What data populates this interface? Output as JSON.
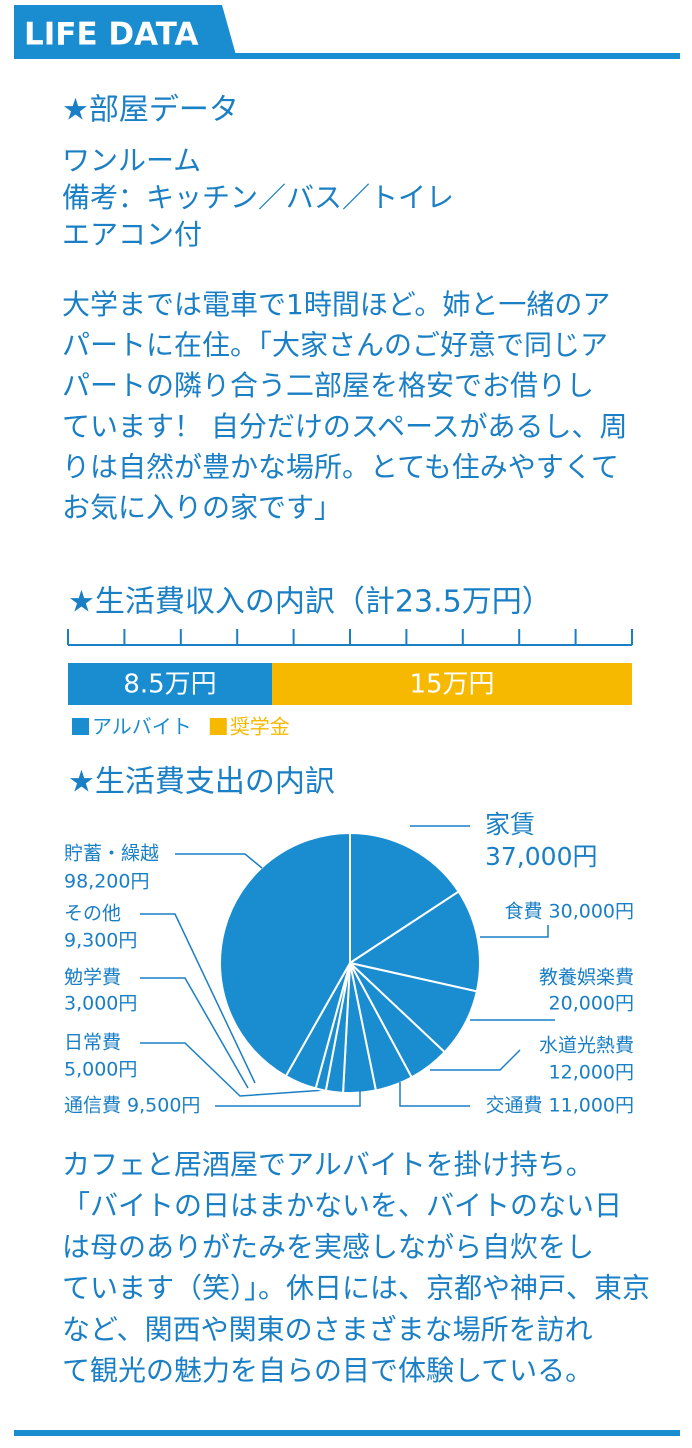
{
  "header": {
    "title": "LIFE DATA"
  },
  "room": {
    "title": "★部屋データ",
    "lines": [
      "ワンルーム",
      "備考：キッチン／バス／トイレ",
      "エアコン付"
    ]
  },
  "paragraph1": {
    "lines": [
      "大学までは電車で1時間ほど。姉と一緒のア",
      "パートに在住。「大家さんのご好意で同じア",
      "パートの隣り合う二部屋を格安でお借りし",
      "ています！ 自分だけのスペースがあるし、周",
      "りは自然が豊かな場所。とても住みやすくて",
      "お気に入りの家です」"
    ]
  },
  "chart_data": [
    {
      "type": "bar",
      "title": "★生活費収入の内訳（計23.5万円）",
      "stacked": true,
      "xlim": [
        0,
        23.5
      ],
      "xticks": [
        0,
        2.35,
        4.7,
        7.05,
        9.4,
        11.75,
        14.1,
        16.45,
        18.8,
        21.15,
        23.5
      ],
      "series": [
        {
          "name": "アルバイト",
          "color": "#1a8dd0",
          "values": [
            8.5
          ],
          "value_labels": [
            "8.5万円"
          ]
        },
        {
          "name": "奨学金",
          "color": "#f7b900",
          "values": [
            15
          ],
          "value_labels": [
            "15万円"
          ]
        }
      ]
    },
    {
      "type": "pie",
      "title": "★生活費支出の内訳",
      "color": "#1a8dd0",
      "categories": [
        "家賃",
        "食費",
        "教養娯楽費",
        "水道光熱費",
        "交通費",
        "通信費",
        "日常費",
        "勉学費",
        "その他",
        "貯蓄・繰越"
      ],
      "values": [
        37000,
        30000,
        20000,
        12000,
        11000,
        9500,
        5000,
        3000,
        9300,
        98200
      ],
      "value_labels": [
        "37,000円",
        "30,000円",
        "20,000円",
        "12,000円",
        "11,000円",
        "9,500円",
        "5,000円",
        "3,000円",
        "9,300円",
        "98,200円"
      ]
    }
  ],
  "paragraph2": {
    "lines": [
      "カフェと居酒屋でアルバイトを掛け持ち。",
      "「バイトの日はまかないを、バイトのない日",
      "は母のありがたみを実感しながら自炊をし",
      "ています（笑）」。休日には、京都や神戸、東京",
      "など、関西や関東のさまざまな場所を訪れ",
      "て観光の魅力を自らの目で体験している。"
    ]
  }
}
